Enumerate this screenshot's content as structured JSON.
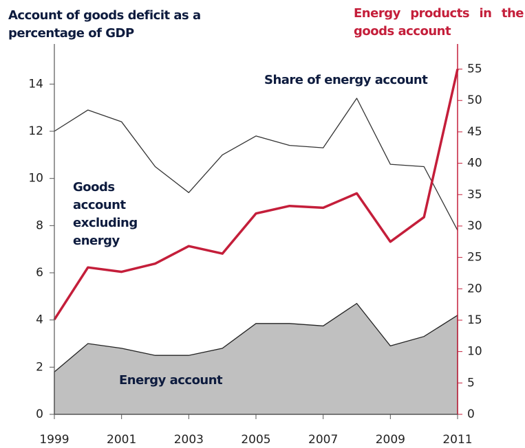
{
  "chart_data": {
    "type": "line",
    "y_axis_title": "Account of goods deficit as a percentage of GDP",
    "y2_axis_title": "Energy products in the goods account",
    "x": [
      1999,
      2000,
      2001,
      2002,
      2003,
      2004,
      2005,
      2006,
      2007,
      2008,
      2009,
      2010,
      2011
    ],
    "xlim": [
      1999,
      2011
    ],
    "xticks": [
      1999,
      2001,
      2003,
      2005,
      2007,
      2009,
      2011
    ],
    "ylim": [
      0,
      15.7
    ],
    "yticks": [
      0,
      2,
      4,
      6,
      8,
      10,
      12,
      14
    ],
    "y2lim": [
      0,
      59
    ],
    "y2ticks": [
      0,
      5,
      10,
      15,
      20,
      25,
      30,
      35,
      40,
      45,
      50,
      55
    ],
    "series": [
      {
        "name": "Energy account",
        "kind": "area",
        "color": "#c0c0c0",
        "values": [
          1.8,
          3.0,
          2.8,
          2.5,
          2.5,
          2.8,
          3.85,
          3.85,
          3.75,
          4.7,
          2.9,
          3.3,
          4.2
        ]
      },
      {
        "name": "Goods account excluding energy",
        "color": "#333333",
        "values": [
          12.0,
          12.9,
          12.4,
          10.5,
          9.4,
          11.0,
          11.8,
          11.4,
          11.3,
          13.4,
          10.6,
          10.5,
          7.8
        ]
      },
      {
        "name": "Share of energy account",
        "color": "#c41e3a",
        "axis": "y2",
        "values": [
          15.1,
          23.4,
          22.7,
          24.0,
          26.8,
          25.6,
          32.0,
          33.2,
          32.9,
          35.2,
          27.5,
          31.4,
          55.0
        ]
      }
    ]
  }
}
